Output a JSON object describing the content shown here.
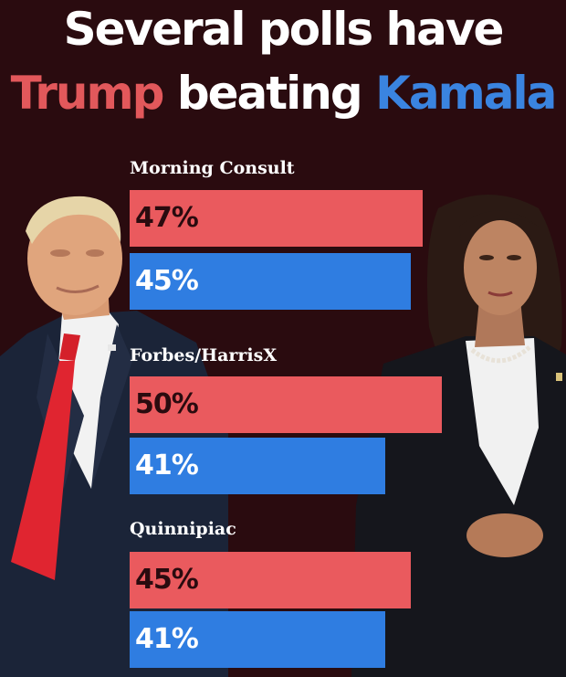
{
  "title": {
    "line1": "Several polls have",
    "line2_red": "Trump",
    "line2_white": "beating",
    "line2_blue": "Kamala"
  },
  "colors": {
    "background": "#2a0b0f",
    "trump": "#ea5a5e",
    "kamala": "#2f7de1",
    "title_red": "#e2585b",
    "title_blue": "#3a84e0"
  },
  "chart_data": {
    "type": "bar",
    "orientation": "horizontal",
    "categories": [
      "Morning Consult",
      "Forbes/HarrisX",
      "Quinnipiac"
    ],
    "series": [
      {
        "values": [
          47,
          50,
          45
        ],
        "labels": [
          "47%",
          "50%",
          "45%"
        ],
        "color": "#ea5a5e"
      },
      {
        "values": [
          45,
          41,
          41
        ],
        "labels": [
          "45%",
          "41%",
          "41%"
        ],
        "color": "#2f7de1"
      }
    ],
    "xlim": [
      0,
      100
    ]
  },
  "people": [
    {
      "name": "trump-photo"
    },
    {
      "name": "kamala-photo"
    }
  ]
}
